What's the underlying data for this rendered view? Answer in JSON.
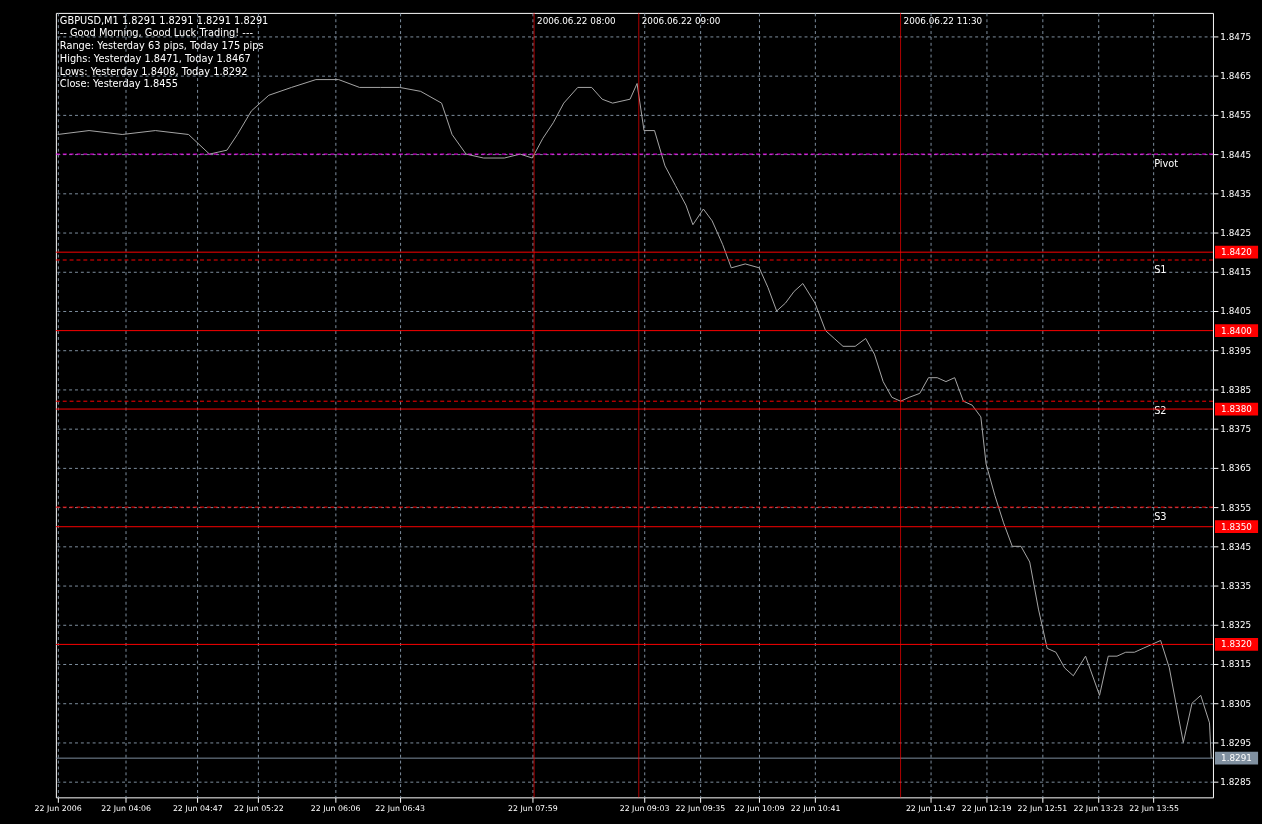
{
  "chart_data": {
    "type": "line",
    "title": "GBPUSD,M1  1.8291 1.8291 1.8291 1.8291",
    "annotations": [
      "-- Good Morning, Good Luck Trading! ---",
      "Range: Yesterday 63 pips, Today 175 pips",
      "Highs: Yesterday 1.8471, Today 1.8467",
      "Lows:  Yesterday 1.8408, Today 1.8292",
      "Close: Yesterday 1.8455"
    ],
    "x": [
      "2006-06-22T03:27",
      "2006-06-22T03:45",
      "2006-06-22T04:04",
      "2006-06-22T04:23",
      "2006-06-22T04:42",
      "2006-06-22T04:54",
      "2006-06-22T05:04",
      "2006-06-22T05:10",
      "2006-06-22T05:18",
      "2006-06-22T05:28",
      "2006-06-22T05:41",
      "2006-06-22T05:55",
      "2006-06-22T06:08",
      "2006-06-22T06:20",
      "2006-06-22T06:32",
      "2006-06-22T06:43",
      "2006-06-22T06:55",
      "2006-06-22T07:07",
      "2006-06-22T07:13",
      "2006-06-22T07:21",
      "2006-06-22T07:31",
      "2006-06-22T07:43",
      "2006-06-22T07:52",
      "2006-06-22T07:59",
      "2006-06-22T08:05",
      "2006-06-22T08:11",
      "2006-06-22T08:17",
      "2006-06-22T08:25",
      "2006-06-22T08:33",
      "2006-06-22T08:39",
      "2006-06-22T08:45",
      "2006-06-22T08:55",
      "2006-06-22T08:59",
      "2006-06-22T09:03",
      "2006-06-22T09:09",
      "2006-06-22T09:15",
      "2006-06-22T09:21",
      "2006-06-22T09:27",
      "2006-06-22T09:31",
      "2006-06-22T09:37",
      "2006-06-22T09:42",
      "2006-06-22T09:48",
      "2006-06-22T09:53",
      "2006-06-22T10:01",
      "2006-06-22T10:09",
      "2006-06-22T10:14",
      "2006-06-22T10:19",
      "2006-06-22T10:24",
      "2006-06-22T10:29",
      "2006-06-22T10:34",
      "2006-06-22T10:41",
      "2006-06-22T10:47",
      "2006-06-22T10:52",
      "2006-06-22T10:57",
      "2006-06-22T11:04",
      "2006-06-22T11:10",
      "2006-06-22T11:15",
      "2006-06-22T11:20",
      "2006-06-22T11:25",
      "2006-06-22T11:30",
      "2006-06-22T11:35",
      "2006-06-22T11:41",
      "2006-06-22T11:46",
      "2006-06-22T11:51",
      "2006-06-22T11:56",
      "2006-06-22T12:01",
      "2006-06-22T12:06",
      "2006-06-22T12:11",
      "2006-06-22T12:16",
      "2006-06-22T12:19",
      "2006-06-22T12:24",
      "2006-06-22T12:29",
      "2006-06-22T12:34",
      "2006-06-22T12:39",
      "2006-06-22T12:44",
      "2006-06-22T12:49",
      "2006-06-22T12:54",
      "2006-06-22T12:59",
      "2006-06-22T13:04",
      "2006-06-22T13:09",
      "2006-06-22T13:16",
      "2006-06-22T13:24",
      "2006-06-22T13:29",
      "2006-06-22T13:34",
      "2006-06-22T13:39",
      "2006-06-22T13:44",
      "2006-06-22T13:49",
      "2006-06-22T13:54",
      "2006-06-22T13:59",
      "2006-06-22T14:04",
      "2006-06-22T14:09",
      "2006-06-22T14:12",
      "2006-06-22T14:17",
      "2006-06-22T14:22",
      "2006-06-22T14:27",
      "2006-06-22T14:28"
    ],
    "series": [
      {
        "color": "#a8a8a8",
        "values": [
          1.845,
          1.8451,
          1.845,
          1.8451,
          1.845,
          1.8445,
          1.8446,
          1.845,
          1.8456,
          1.846,
          1.8462,
          1.8464,
          1.8464,
          1.8462,
          1.8462,
          1.8462,
          1.8461,
          1.8458,
          1.845,
          1.8445,
          1.8444,
          1.8444,
          1.8445,
          1.8444,
          1.8449,
          1.8453,
          1.8458,
          1.8462,
          1.8462,
          1.8459,
          1.8458,
          1.8459,
          1.8463,
          1.8451,
          1.8451,
          1.8442,
          1.8437,
          1.8432,
          1.8427,
          1.8431,
          1.8428,
          1.8422,
          1.8416,
          1.8417,
          1.8416,
          1.8411,
          1.8405,
          1.8407,
          1.841,
          1.8412,
          1.8407,
          1.84,
          1.8398,
          1.8396,
          1.8396,
          1.8398,
          1.8394,
          1.8387,
          1.8383,
          1.8382,
          1.8383,
          1.8384,
          1.8388,
          1.8388,
          1.8387,
          1.8388,
          1.8382,
          1.8381,
          1.8378,
          1.8366,
          1.8358,
          1.8351,
          1.8345,
          1.8345,
          1.8341,
          1.8329,
          1.8319,
          1.8318,
          1.8314,
          1.8312,
          1.8317,
          1.8307,
          1.8317,
          1.8317,
          1.8318,
          1.8318,
          1.8319,
          1.832,
          1.8321,
          1.8314,
          1.8302,
          1.8295,
          1.8305,
          1.8307,
          1.83,
          1.8291
        ]
      }
    ],
    "xlim": [
      "2006-06-22T03:26",
      "2006-06-22T14:29"
    ],
    "xticks": [
      {
        "value": "2006-06-22T03:27",
        "label": "22 Jun 2006"
      },
      {
        "value": "2006-06-22T04:06",
        "label": "22 Jun 04:06"
      },
      {
        "value": "2006-06-22T04:47",
        "label": "22 Jun 04:47"
      },
      {
        "value": "2006-06-22T05:22",
        "label": "22 Jun 05:22"
      },
      {
        "value": "2006-06-22T06:06",
        "label": "22 Jun 06:06"
      },
      {
        "value": "2006-06-22T06:43",
        "label": "22 Jun 06:43"
      },
      {
        "value": "2006-06-22T07:59",
        "label": "22 Jun 07:59"
      },
      {
        "value": "2006-06-22T09:03",
        "label": "22 Jun 09:03"
      },
      {
        "value": "2006-06-22T09:35",
        "label": "22 Jun 09:35"
      },
      {
        "value": "2006-06-22T10:09",
        "label": "22 Jun 10:09"
      },
      {
        "value": "2006-06-22T10:41",
        "label": "22 Jun 10:41"
      },
      {
        "value": "2006-06-22T11:47",
        "label": "22 Jun 11:47"
      },
      {
        "value": "2006-06-22T12:19",
        "label": "22 Jun 12:19"
      },
      {
        "value": "2006-06-22T12:51",
        "label": "22 Jun 12:51"
      },
      {
        "value": "2006-06-22T13:23",
        "label": "22 Jun 13:23"
      },
      {
        "value": "2006-06-22T13:55",
        "label": "22 Jun 13:55"
      }
    ],
    "ylim": [
      1.8281,
      1.8481
    ],
    "yticks": [
      1.8285,
      1.8295,
      1.8305,
      1.8315,
      1.8325,
      1.8335,
      1.8345,
      1.8355,
      1.8365,
      1.8375,
      1.8385,
      1.8395,
      1.8405,
      1.8415,
      1.8425,
      1.8435,
      1.8445,
      1.8455,
      1.8465,
      1.8475
    ],
    "ref_lines": [
      {
        "axis": "y",
        "value": 1.8445,
        "label": "Pivot",
        "color": "#ff00ff",
        "line_style": "dashed"
      },
      {
        "axis": "y",
        "value": 1.8418,
        "label": "S1",
        "color": "#ff0000",
        "line_style": "dashed"
      },
      {
        "axis": "y",
        "value": 1.8382,
        "label": "S2",
        "color": "#ff0000",
        "line_style": "dashed"
      },
      {
        "axis": "y",
        "value": 1.8355,
        "label": "S3",
        "color": "#ff0000",
        "line_style": "dashed"
      },
      {
        "axis": "y",
        "value": 1.842,
        "label": "1.8420",
        "color": "#ff0000",
        "line_style": "solid"
      },
      {
        "axis": "y",
        "value": 1.84,
        "label": "1.8400",
        "color": "#ff0000",
        "line_style": "solid"
      },
      {
        "axis": "y",
        "value": 1.838,
        "label": "1.8380",
        "color": "#ff0000",
        "line_style": "solid"
      },
      {
        "axis": "y",
        "value": 1.835,
        "label": "1.8350",
        "color": "#ff0000",
        "line_style": "solid"
      },
      {
        "axis": "y",
        "value": 1.832,
        "label": "1.8320",
        "color": "#ff0000",
        "line_style": "solid"
      },
      {
        "axis": "y",
        "value": 1.8291,
        "label": "1.8291",
        "color": "#8090a0",
        "line_style": "solid"
      },
      {
        "axis": "x",
        "value": "2006-06-22T08:00",
        "label": "2006.06.22 08:00",
        "color": "#ff0000",
        "line_style": "solid"
      },
      {
        "axis": "x",
        "value": "2006-06-22T09:00",
        "label": "2006.06.22 09:00",
        "color": "#ff0000",
        "line_style": "solid"
      },
      {
        "axis": "x",
        "value": "2006-06-22T11:30",
        "label": "2006.06.22 11:30",
        "color": "#ff0000",
        "line_style": "solid"
      }
    ],
    "grid": true,
    "marker": "none",
    "line_style": "solid"
  }
}
